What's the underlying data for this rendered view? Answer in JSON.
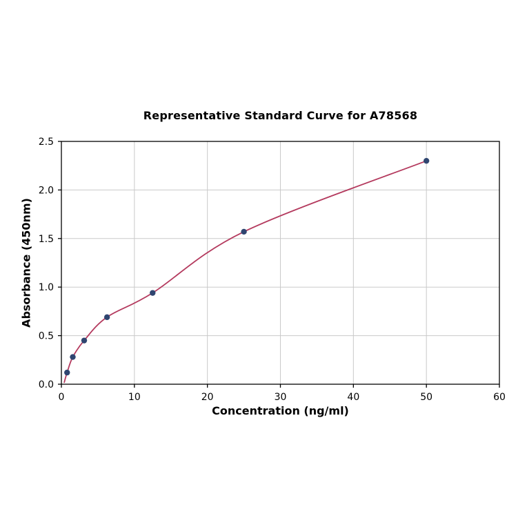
{
  "chart_data": {
    "type": "scatter",
    "title": "Representative Standard Curve for A78568",
    "xlabel": "Concentration (ng/ml)",
    "ylabel": "Absorbance (450nm)",
    "x": [
      0.78,
      1.56,
      3.12,
      6.25,
      12.5,
      25,
      50
    ],
    "y": [
      0.12,
      0.28,
      0.45,
      0.69,
      0.94,
      1.57,
      2.3
    ],
    "curve": "smooth monotone fit through all points",
    "curve_start": [
      0.4,
      0.02
    ],
    "xlim": [
      0,
      60
    ],
    "ylim": [
      0,
      2.5
    ],
    "xticks": [
      0,
      10,
      20,
      30,
      40,
      50,
      60
    ],
    "yticks": [
      0,
      0.5,
      1,
      1.5,
      2,
      2.5
    ],
    "grid": true,
    "legend": false,
    "colors": {
      "curve": "#b43a5e",
      "points": "#2f4570",
      "grid": "#c9c9c9",
      "axis": "#000000",
      "background": "#ffffff"
    }
  }
}
